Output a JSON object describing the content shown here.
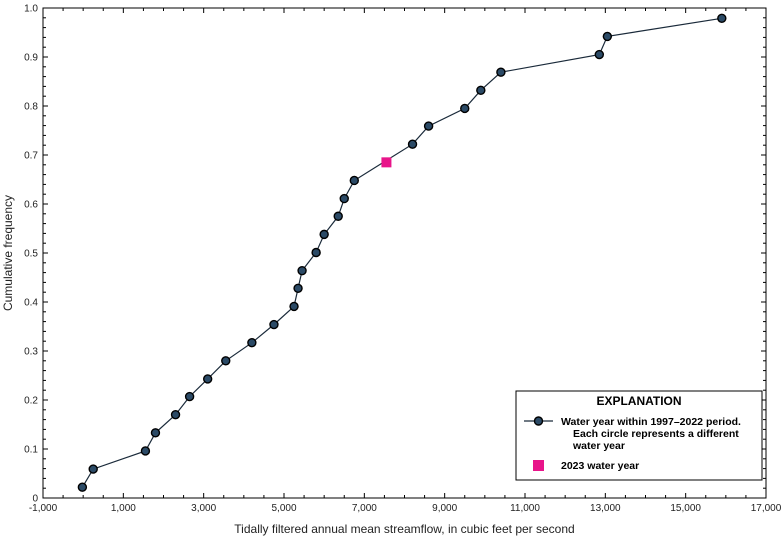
{
  "chart_data": {
    "type": "scatter",
    "title": "",
    "xlabel": "Tidally filtered annual mean streamflow, in cubic feet per second",
    "ylabel": "Cumulative  frequency",
    "xlim": [
      -1000,
      17000
    ],
    "ylim": [
      0,
      1.0
    ],
    "x_ticks": [
      -1000,
      1000,
      3000,
      5000,
      7000,
      9000,
      11000,
      13000,
      15000,
      17000
    ],
    "x_tick_labels": [
      "-1,000",
      "1,000",
      "3,000",
      "5,000",
      "7,000",
      "9,000",
      "11,000",
      "13,000",
      "15,000",
      "17,000"
    ],
    "y_ticks": [
      0,
      0.1,
      0.2,
      0.3,
      0.4,
      0.5,
      0.6,
      0.7,
      0.8,
      0.9,
      1.0
    ],
    "y_tick_labels": [
      "0",
      "0.1",
      "0.2",
      "0.3",
      "0.4",
      "0.5",
      "0.6",
      "0.7",
      "0.8",
      "0.9",
      "1.0"
    ],
    "grid": false,
    "legend_position": "bottom-right",
    "series": [
      {
        "kind": "line-with-circles",
        "color": "#1a2a3a",
        "marker_fill": "#2b4a66",
        "x": [
          -20,
          250,
          1550,
          1800,
          2300,
          2650,
          3100,
          3550,
          4200,
          4750,
          5250,
          5350,
          5450,
          5800,
          6000,
          6350,
          6500,
          6750,
          8200,
          8600,
          9500,
          9900,
          10400,
          12850,
          13050,
          15900
        ],
        "y": [
          0.022,
          0.059,
          0.096,
          0.133,
          0.17,
          0.207,
          0.243,
          0.28,
          0.317,
          0.354,
          0.391,
          0.428,
          0.464,
          0.501,
          0.538,
          0.575,
          0.611,
          0.648,
          0.722,
          0.759,
          0.795,
          0.832,
          0.869,
          0.905,
          0.942,
          0.979
        ]
      },
      {
        "kind": "square",
        "color": "#e8158a",
        "x": [
          7550
        ],
        "y": [
          0.685
        ]
      }
    ],
    "legend": {
      "title": "EXPLANATION",
      "entries": [
        {
          "text_lines": [
            "Water year within 1997–2022 period.",
            "Each circle represents a different",
            "water year"
          ]
        },
        {
          "text_lines": [
            "2023 water year"
          ]
        }
      ]
    }
  }
}
